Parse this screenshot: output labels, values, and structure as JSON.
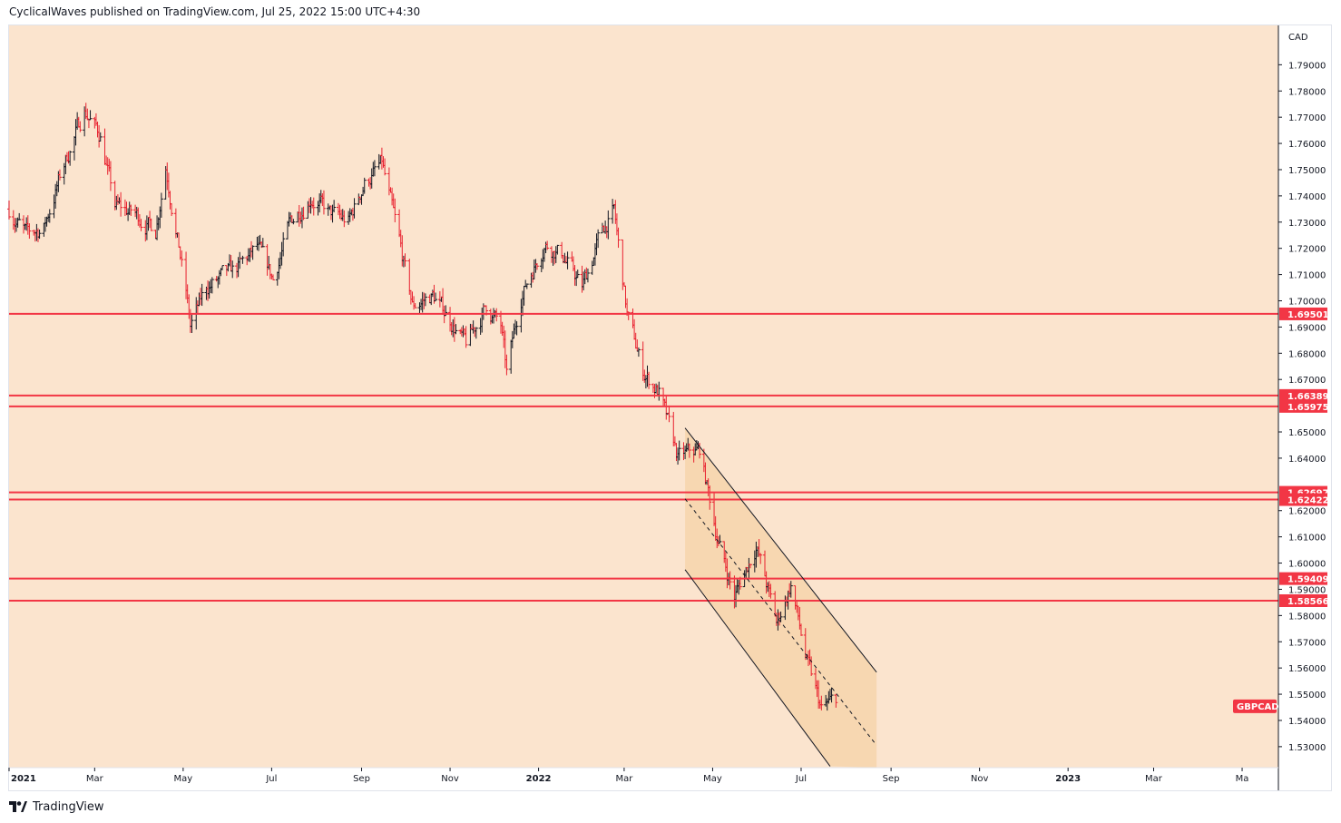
{
  "header": {
    "published_text": "CyclicalWaves published on TradingView.com, Jul 25, 2022 15:00 UTC+4:30"
  },
  "footer": {
    "brand": "TradingView",
    "logo_icon": "tradingview-logo-icon"
  },
  "chart_data": {
    "type": "ohlc",
    "symbol": "GBPCAD",
    "currency": "CAD",
    "ylim": [
      1.522,
      1.805
    ],
    "y_ticks": [
      1.79,
      1.78,
      1.77,
      1.76,
      1.75,
      1.74,
      1.73,
      1.72,
      1.71,
      1.7,
      1.69,
      1.68,
      1.67,
      1.65,
      1.64,
      1.62,
      1.61,
      1.6,
      1.59,
      1.58,
      1.57,
      1.56,
      1.55,
      1.54,
      1.53
    ],
    "x_range": [
      "2021-01-01",
      "2023-05-26"
    ],
    "x_ticks": [
      {
        "label": "2021",
        "date": "2021-01-01",
        "bold": true
      },
      {
        "label": "Mar",
        "date": "2021-03-01",
        "bold": false
      },
      {
        "label": "May",
        "date": "2021-05-01",
        "bold": false
      },
      {
        "label": "Jul",
        "date": "2021-07-01",
        "bold": false
      },
      {
        "label": "Sep",
        "date": "2021-09-01",
        "bold": false
      },
      {
        "label": "Nov",
        "date": "2021-11-01",
        "bold": false
      },
      {
        "label": "2022",
        "date": "2022-01-01",
        "bold": true
      },
      {
        "label": "Mar",
        "date": "2022-03-01",
        "bold": false
      },
      {
        "label": "May",
        "date": "2022-05-01",
        "bold": false
      },
      {
        "label": "Jul",
        "date": "2022-07-01",
        "bold": false
      },
      {
        "label": "Sep",
        "date": "2022-09-01",
        "bold": false
      },
      {
        "label": "Nov",
        "date": "2022-11-01",
        "bold": false
      },
      {
        "label": "2023",
        "date": "2023-01-01",
        "bold": true
      },
      {
        "label": "Mar",
        "date": "2023-03-01",
        "bold": false
      },
      {
        "label": "Ma",
        "date": "2023-05-01",
        "bold": false
      }
    ],
    "horizontal_levels": [
      {
        "value": 1.69501,
        "label": "1.69501"
      },
      {
        "value": 1.66389,
        "label": "1.66389"
      },
      {
        "value": 1.65975,
        "label": "1.65975"
      },
      {
        "value": 1.62697,
        "label": "1.62697"
      },
      {
        "value": 1.62422,
        "label": "1.62422"
      },
      {
        "value": 1.59409,
        "label": "1.59409"
      },
      {
        "value": 1.58566,
        "label": "1.58566"
      }
    ],
    "last_price_label": "GBPCAD",
    "channel": {
      "upper": [
        {
          "date": "2022-04-12",
          "price": 1.6515
        },
        {
          "date": "2022-08-22",
          "price": 1.5584
        }
      ],
      "lower": [
        {
          "date": "2022-04-12",
          "price": 1.5975
        },
        {
          "date": "2022-07-21",
          "price": 1.5225
        }
      ],
      "mid": [
        {
          "date": "2022-04-12",
          "price": 1.6245
        },
        {
          "date": "2022-08-22",
          "price": 1.5305
        }
      ],
      "shaded_until": "2022-08-22"
    },
    "path_points": [
      {
        "date": "2021-01-01",
        "price": 1.735
      },
      {
        "date": "2021-01-13",
        "price": 1.725
      },
      {
        "date": "2021-01-25",
        "price": 1.728
      },
      {
        "date": "2021-02-08",
        "price": 1.752
      },
      {
        "date": "2021-02-22",
        "price": 1.773
      },
      {
        "date": "2021-03-05",
        "price": 1.763
      },
      {
        "date": "2021-03-15",
        "price": 1.736
      },
      {
        "date": "2021-03-29",
        "price": 1.733
      },
      {
        "date": "2021-04-12",
        "price": 1.727
      },
      {
        "date": "2021-04-19",
        "price": 1.752
      },
      {
        "date": "2021-05-03",
        "price": 1.703
      },
      {
        "date": "2021-05-06",
        "price": 1.69
      },
      {
        "date": "2021-05-17",
        "price": 1.705
      },
      {
        "date": "2021-06-07",
        "price": 1.712
      },
      {
        "date": "2021-06-21",
        "price": 1.72
      },
      {
        "date": "2021-07-02",
        "price": 1.708
      },
      {
        "date": "2021-07-14",
        "price": 1.73
      },
      {
        "date": "2021-07-28",
        "price": 1.74
      },
      {
        "date": "2021-08-10",
        "price": 1.733
      },
      {
        "date": "2021-08-23",
        "price": 1.73
      },
      {
        "date": "2021-09-03",
        "price": 1.745
      },
      {
        "date": "2021-09-15",
        "price": 1.752
      },
      {
        "date": "2021-09-27",
        "price": 1.722
      },
      {
        "date": "2021-10-06",
        "price": 1.698
      },
      {
        "date": "2021-10-20",
        "price": 1.702
      },
      {
        "date": "2021-11-01",
        "price": 1.693
      },
      {
        "date": "2021-11-12",
        "price": 1.683
      },
      {
        "date": "2021-11-26",
        "price": 1.698
      },
      {
        "date": "2021-12-06",
        "price": 1.69
      },
      {
        "date": "2021-12-10",
        "price": 1.672
      },
      {
        "date": "2021-12-20",
        "price": 1.702
      },
      {
        "date": "2022-01-05",
        "price": 1.722
      },
      {
        "date": "2022-01-17",
        "price": 1.718
      },
      {
        "date": "2022-01-31",
        "price": 1.705
      },
      {
        "date": "2022-02-14",
        "price": 1.727
      },
      {
        "date": "2022-02-22",
        "price": 1.734
      },
      {
        "date": "2022-03-03",
        "price": 1.695
      },
      {
        "date": "2022-03-14",
        "price": 1.673
      },
      {
        "date": "2022-03-25",
        "price": 1.665
      },
      {
        "date": "2022-04-07",
        "price": 1.64
      },
      {
        "date": "2022-04-22",
        "price": 1.643
      },
      {
        "date": "2022-05-05",
        "price": 1.608
      },
      {
        "date": "2022-05-16",
        "price": 1.587
      },
      {
        "date": "2022-05-31",
        "price": 1.607
      },
      {
        "date": "2022-06-14",
        "price": 1.577
      },
      {
        "date": "2022-06-24",
        "price": 1.592
      },
      {
        "date": "2022-07-05",
        "price": 1.562
      },
      {
        "date": "2022-07-15",
        "price": 1.544
      },
      {
        "date": "2022-07-25",
        "price": 1.548
      }
    ]
  }
}
